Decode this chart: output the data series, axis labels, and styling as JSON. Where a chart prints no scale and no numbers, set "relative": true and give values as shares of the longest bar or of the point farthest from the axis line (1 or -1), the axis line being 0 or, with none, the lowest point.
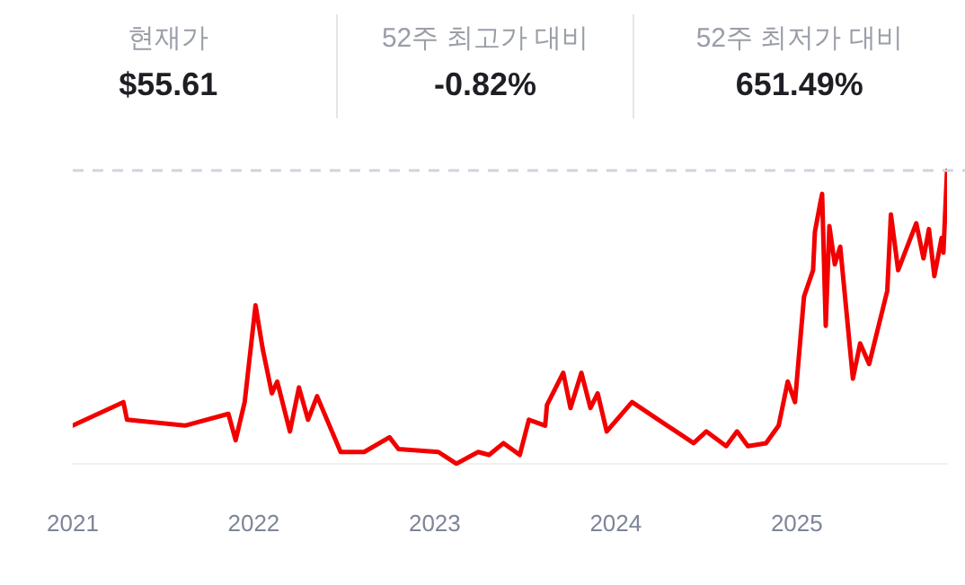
{
  "chart_data": {
    "type": "line",
    "relative": true,
    "grid": false,
    "legend": false,
    "marker": "none",
    "line_style": "solid",
    "annotations": [
      "현재가",
      "$55.61",
      "52주 최고가 대비",
      "-0.82%",
      "52주 최저가 대비",
      "651.49%"
    ],
    "x": [
      2021.0,
      2021.28,
      2021.3,
      2021.62,
      2021.86,
      2021.9,
      2021.95,
      2022.01,
      2022.05,
      2022.1,
      2022.13,
      2022.2,
      2022.25,
      2022.3,
      2022.35,
      2022.48,
      2022.61,
      2022.75,
      2022.8,
      2023.02,
      2023.12,
      2023.24,
      2023.3,
      2023.38,
      2023.47,
      2023.52,
      2023.61,
      2023.62,
      2023.71,
      2023.75,
      2023.81,
      2023.86,
      2023.9,
      2023.95,
      2024.09,
      2024.26,
      2024.43,
      2024.5,
      2024.61,
      2024.67,
      2024.73,
      2024.83,
      2024.9,
      2024.95,
      2024.99,
      2025.04,
      2025.09,
      2025.1,
      2025.13,
      2025.14,
      2025.16,
      2025.18,
      2025.21,
      2025.24,
      2025.31,
      2025.35,
      2025.4,
      2025.5,
      2025.52,
      2025.56,
      2025.66,
      2025.7,
      2025.73,
      2025.76,
      2025.8,
      2025.81,
      2025.83
    ],
    "series": [
      {
        "color": "#f20000",
        "values": [
          0.13,
          0.21,
          0.15,
          0.13,
          0.17,
          0.08,
          0.21,
          0.54,
          0.39,
          0.24,
          0.28,
          0.11,
          0.26,
          0.15,
          0.23,
          0.04,
          0.04,
          0.09,
          0.05,
          0.04,
          0,
          0.04,
          0.03,
          0.07,
          0.03,
          0.15,
          0.13,
          0.2,
          0.31,
          0.19,
          0.31,
          0.19,
          0.24,
          0.11,
          0.21,
          0.14,
          0.07,
          0.11,
          0.06,
          0.11,
          0.06,
          0.07,
          0.13,
          0.28,
          0.21,
          0.57,
          0.66,
          0.79,
          0.89,
          0.92,
          0.47,
          0.81,
          0.68,
          0.74,
          0.29,
          0.41,
          0.34,
          0.59,
          0.85,
          0.66,
          0.82,
          0.7,
          0.8,
          0.64,
          0.77,
          0.72,
          1
        ]
      }
    ],
    "xlim": [
      2021,
      2025.83
    ],
    "xticks": [
      2021,
      2022,
      2023,
      2024,
      2025
    ],
    "ref_lines": [
      {
        "axis": "y",
        "value": 1,
        "color": "#d0d4e0",
        "line_style": "dashed"
      }
    ]
  }
}
